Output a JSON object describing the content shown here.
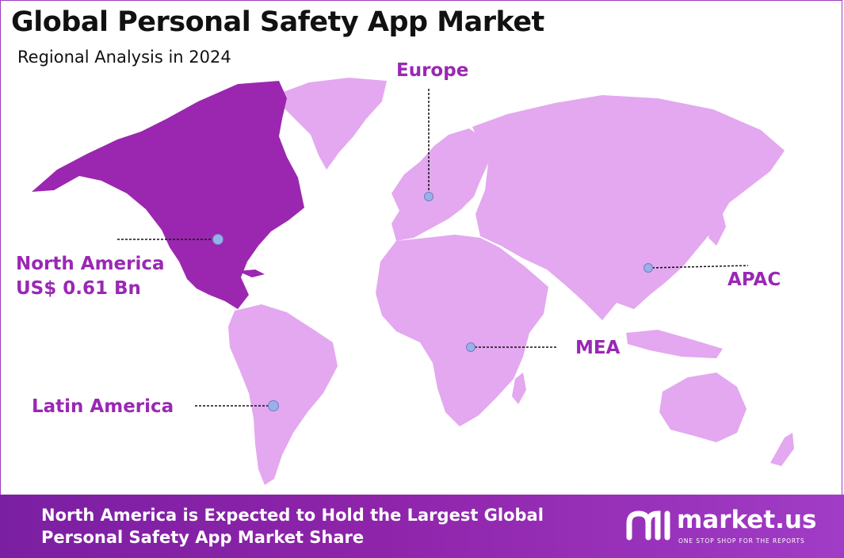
{
  "header": {
    "title": "Global Personal Safety App Market",
    "subtitle": "Regional Analysis in 2024"
  },
  "regions": {
    "north_america": {
      "name": "North America",
      "value": "US$ 0.61 Bn",
      "highlighted": true,
      "color": "#9b27b0"
    },
    "europe": {
      "name": "Europe",
      "highlighted": false,
      "color": "#e3a8ef"
    },
    "apac": {
      "name": "APAC",
      "highlighted": false,
      "color": "#e3a8ef"
    },
    "mea": {
      "name": "MEA",
      "highlighted": false,
      "color": "#e3a8ef"
    },
    "latin_america": {
      "name": "Latin America",
      "highlighted": false,
      "color": "#e3a8ef"
    }
  },
  "colors": {
    "label_purple": "#9a28b4",
    "marker_fill": "#9bb0e8",
    "footer_purple": "#8e24aa"
  },
  "footer": {
    "headline": "North America is Expected to Hold the Largest Global Personal Safety App Market Share",
    "brand": "market.us",
    "tagline": "ONE STOP SHOP FOR THE REPORTS"
  }
}
